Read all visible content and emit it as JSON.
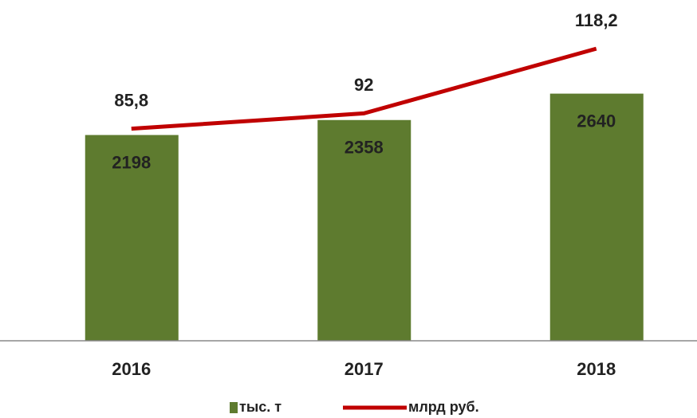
{
  "chart_data": {
    "type": "bar",
    "categories": [
      "2016",
      "2017",
      "2018"
    ],
    "series": [
      {
        "name": "тыс. т",
        "type": "bar",
        "color": "#5e7b2f",
        "values": [
          2198,
          2358,
          2640
        ]
      },
      {
        "name": "млрд руб.",
        "type": "line",
        "color": "#c00000",
        "axis": "y2",
        "values": [
          85.8,
          92,
          118.2
        ],
        "value_labels": [
          "85,8",
          "92",
          "118,2"
        ]
      }
    ],
    "ylim": [
      0,
      3300
    ],
    "y2lim": [
      0,
      125
    ],
    "legend": "bottom"
  }
}
